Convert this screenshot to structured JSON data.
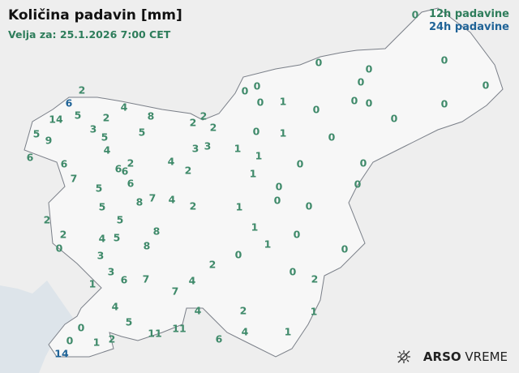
{
  "title": "Količina padavin [mm]",
  "valid": "Velja za: 25.1.2026 7:00 CET",
  "legend": {
    "h12": "12h padavine",
    "h24": "24h padavine"
  },
  "colors": {
    "h12": "#3f8a6a",
    "h24": "#1f6397",
    "land": "#f6f6f6",
    "sea": "#dde4ea",
    "border": "#7a7f88"
  },
  "brand": {
    "icon": "sun-cloud-icon",
    "name_bold": "ARSO",
    "name": "VREME"
  },
  "stations": [
    {
      "v": "0",
      "t": "12h"
    },
    {
      "v": "0",
      "t": "12h"
    },
    {
      "v": "0",
      "t": "12h"
    },
    {
      "v": "0",
      "t": "12h"
    },
    {
      "v": "0",
      "t": "12h"
    },
    {
      "v": "0",
      "t": "12h"
    },
    {
      "v": "0",
      "t": "12h"
    },
    {
      "v": "0",
      "t": "12h"
    },
    {
      "v": "0",
      "t": "12h"
    },
    {
      "v": "1",
      "t": "12h"
    },
    {
      "v": "0",
      "t": "12h"
    },
    {
      "v": "0",
      "t": "12h"
    },
    {
      "v": "0",
      "t": "12h"
    },
    {
      "v": "0",
      "t": "12h"
    },
    {
      "v": "0",
      "t": "12h"
    },
    {
      "v": "0",
      "t": "12h"
    },
    {
      "v": "1",
      "t": "12h"
    },
    {
      "v": "0",
      "t": "12h"
    },
    {
      "v": "1",
      "t": "12h"
    },
    {
      "v": "1",
      "t": "12h"
    },
    {
      "v": "0",
      "t": "12h"
    },
    {
      "v": "0",
      "t": "12h"
    },
    {
      "v": "1",
      "t": "12h"
    },
    {
      "v": "0",
      "t": "12h"
    },
    {
      "v": "0",
      "t": "12h"
    },
    {
      "v": "0",
      "t": "12h"
    },
    {
      "v": "0",
      "t": "12h"
    },
    {
      "v": "1",
      "t": "12h"
    },
    {
      "v": "1",
      "t": "12h"
    },
    {
      "v": "0",
      "t": "12h"
    },
    {
      "v": "1",
      "t": "12h"
    },
    {
      "v": "0",
      "t": "12h"
    },
    {
      "v": "0",
      "t": "12h"
    },
    {
      "v": "0",
      "t": "12h"
    },
    {
      "v": "2",
      "t": "12h"
    },
    {
      "v": "1",
      "t": "12h"
    },
    {
      "v": "1",
      "t": "12h"
    },
    {
      "v": "2",
      "t": "12h"
    },
    {
      "v": "4",
      "t": "12h"
    },
    {
      "v": "6",
      "t": "12h"
    },
    {
      "v": "4",
      "t": "12h"
    },
    {
      "v": "2",
      "t": "12h"
    },
    {
      "v": "6",
      "t": "24h"
    },
    {
      "v": "4",
      "t": "12h"
    },
    {
      "v": "14",
      "t": "12h"
    },
    {
      "v": "5",
      "t": "12h"
    },
    {
      "v": "2",
      "t": "12h"
    },
    {
      "v": "8",
      "t": "12h"
    },
    {
      "v": "2",
      "t": "12h"
    },
    {
      "v": "2",
      "t": "12h"
    },
    {
      "v": "2",
      "t": "12h"
    },
    {
      "v": "5",
      "t": "12h"
    },
    {
      "v": "9",
      "t": "12h"
    },
    {
      "v": "3",
      "t": "12h"
    },
    {
      "v": "5",
      "t": "12h"
    },
    {
      "v": "5",
      "t": "12h"
    },
    {
      "v": "4",
      "t": "12h"
    },
    {
      "v": "6",
      "t": "12h"
    },
    {
      "v": "6",
      "t": "12h"
    },
    {
      "v": "6",
      "t": "12h"
    },
    {
      "v": "2",
      "t": "12h"
    },
    {
      "v": "6",
      "t": "12h"
    },
    {
      "v": "6",
      "t": "12h"
    },
    {
      "v": "7",
      "t": "12h"
    },
    {
      "v": "3",
      "t": "12h"
    },
    {
      "v": "3",
      "t": "12h"
    },
    {
      "v": "4",
      "t": "12h"
    },
    {
      "v": "2",
      "t": "12h"
    },
    {
      "v": "5",
      "t": "12h"
    },
    {
      "v": "8",
      "t": "12h"
    },
    {
      "v": "7",
      "t": "12h"
    },
    {
      "v": "4",
      "t": "12h"
    },
    {
      "v": "2",
      "t": "12h"
    },
    {
      "v": "5",
      "t": "12h"
    },
    {
      "v": "5",
      "t": "12h"
    },
    {
      "v": "2",
      "t": "12h"
    },
    {
      "v": "2",
      "t": "12h"
    },
    {
      "v": "4",
      "t": "12h"
    },
    {
      "v": "5",
      "t": "12h"
    },
    {
      "v": "8",
      "t": "12h"
    },
    {
      "v": "8",
      "t": "12h"
    },
    {
      "v": "0",
      "t": "12h"
    },
    {
      "v": "3",
      "t": "12h"
    },
    {
      "v": "3",
      "t": "12h"
    },
    {
      "v": "6",
      "t": "12h"
    },
    {
      "v": "7",
      "t": "12h"
    },
    {
      "v": "1",
      "t": "12h"
    },
    {
      "v": "2",
      "t": "12h"
    },
    {
      "v": "4",
      "t": "12h"
    },
    {
      "v": "7",
      "t": "12h"
    },
    {
      "v": "4",
      "t": "12h"
    },
    {
      "v": "5",
      "t": "12h"
    },
    {
      "v": "0",
      "t": "12h"
    },
    {
      "v": "0",
      "t": "12h"
    },
    {
      "v": "1",
      "t": "12h"
    },
    {
      "v": "2",
      "t": "12h"
    },
    {
      "v": "14",
      "t": "24h"
    },
    {
      "v": "11",
      "t": "12h"
    },
    {
      "v": "11",
      "t": "12h"
    }
  ]
}
